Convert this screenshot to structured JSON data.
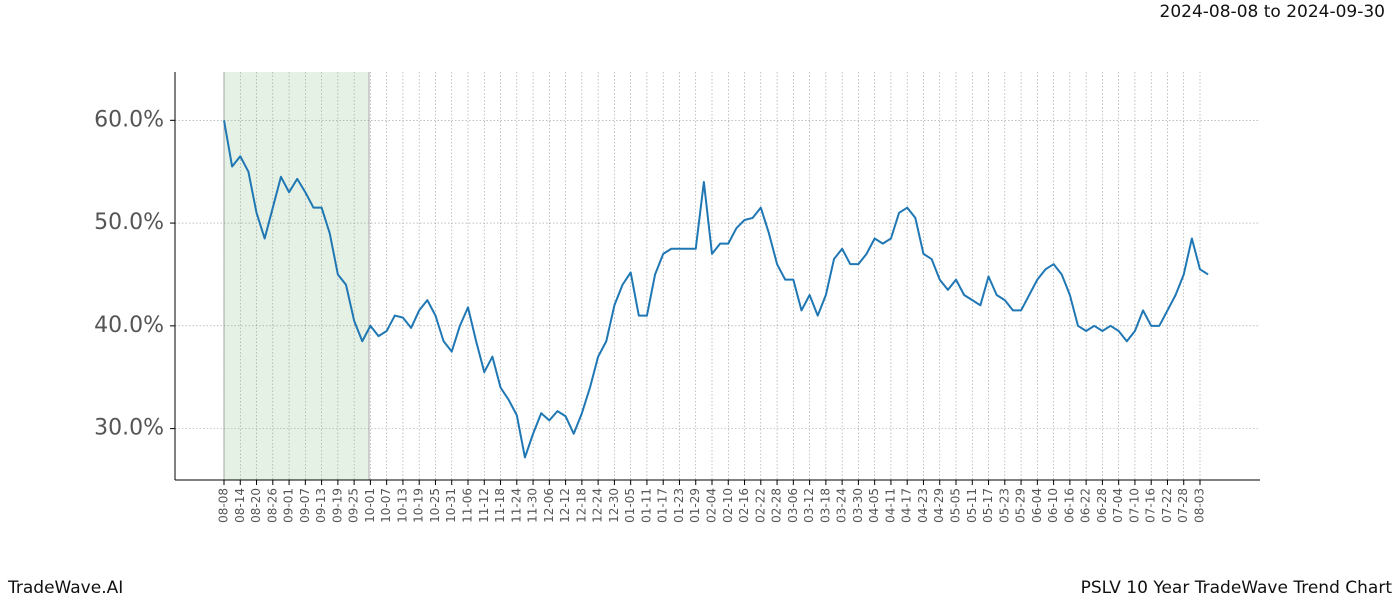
{
  "chart_data": {
    "type": "line",
    "title": "PSLV 10 Year TradeWave Trend Chart",
    "subtitle": "2024-08-08 to 2024-09-30",
    "source": "TradeWave.AI",
    "categories": [
      "08-08",
      null,
      "08-14",
      null,
      "08-20",
      null,
      "08-26",
      null,
      "09-01",
      null,
      "09-07",
      null,
      "09-13",
      null,
      "09-19",
      null,
      "09-25",
      null,
      "10-01",
      null,
      "10-07",
      null,
      "10-13",
      null,
      "10-19",
      null,
      "10-25",
      null,
      "10-31",
      null,
      "11-06",
      null,
      "11-12",
      null,
      "11-18",
      null,
      "11-24",
      null,
      "11-30",
      null,
      "12-06",
      null,
      "12-12",
      null,
      "12-18",
      null,
      "12-24",
      null,
      "12-30",
      null,
      "01-05",
      null,
      "01-11",
      null,
      "01-17",
      null,
      "01-23",
      null,
      "01-29",
      null,
      "02-04",
      null,
      "02-10",
      null,
      "02-16",
      null,
      "02-22",
      null,
      "02-28",
      null,
      "03-06",
      null,
      "03-12",
      null,
      "03-18",
      null,
      "03-24",
      null,
      "03-30",
      null,
      "04-05",
      null,
      "04-11",
      null,
      "04-17",
      null,
      "04-23",
      null,
      "04-29",
      null,
      "05-05",
      null,
      "05-11",
      null,
      "05-17",
      null,
      "05-23",
      null,
      "05-29",
      null,
      "06-04",
      null,
      "06-10",
      null,
      "06-16",
      null,
      "06-22",
      null,
      "06-28",
      null,
      "07-04",
      null,
      "07-10",
      null,
      "07-16",
      null,
      "07-22",
      null,
      "07-28",
      null,
      "08-03",
      null
    ],
    "values": [
      60.0,
      55.5,
      56.5,
      55,
      51,
      48.5,
      51.5,
      54.5,
      53,
      54.3,
      53,
      51.5,
      51.5,
      49,
      45,
      44,
      40.5,
      38.5,
      40,
      39,
      39.5,
      41,
      40.8,
      39.8,
      41.5,
      42.5,
      41,
      38.5,
      37.5,
      40,
      41.8,
      38.5,
      35.5,
      37,
      34,
      32.8,
      31.3,
      27.2,
      29.5,
      31.5,
      30.8,
      31.7,
      31.2,
      29.5,
      31.5,
      34,
      37,
      38.5,
      42,
      44,
      45.2,
      41,
      41,
      45,
      47,
      47.5,
      47.5,
      47.5,
      47.5,
      54,
      47,
      48,
      48,
      49.5,
      50.3,
      50.5,
      51.5,
      49,
      46,
      44.5,
      44.5,
      41.5,
      43,
      41,
      43,
      46.5,
      47.5,
      46,
      46,
      47,
      48.5,
      48,
      48.5,
      51,
      51.5,
      50.5,
      47,
      46.5,
      44.5,
      43.5,
      44.5,
      43,
      42.5,
      42,
      44.8,
      43,
      42.5,
      41.5,
      41.5,
      43,
      44.5,
      45.5,
      46,
      45,
      43,
      40,
      39.5,
      40,
      39.5,
      40,
      39.5,
      38.5,
      39.5,
      41.5,
      40,
      40,
      41.5,
      43,
      45,
      48.5,
      45.5,
      45
    ],
    "color": "#1f77b4",
    "ylim": [
      25.0,
      64.7
    ],
    "yticks": [
      {
        "value": 30,
        "label": "30.0%"
      },
      {
        "value": 40,
        "label": "40.0%"
      },
      {
        "value": 50,
        "label": "50.0%"
      },
      {
        "value": 60,
        "label": "60.0%"
      }
    ],
    "grid": true
  }
}
